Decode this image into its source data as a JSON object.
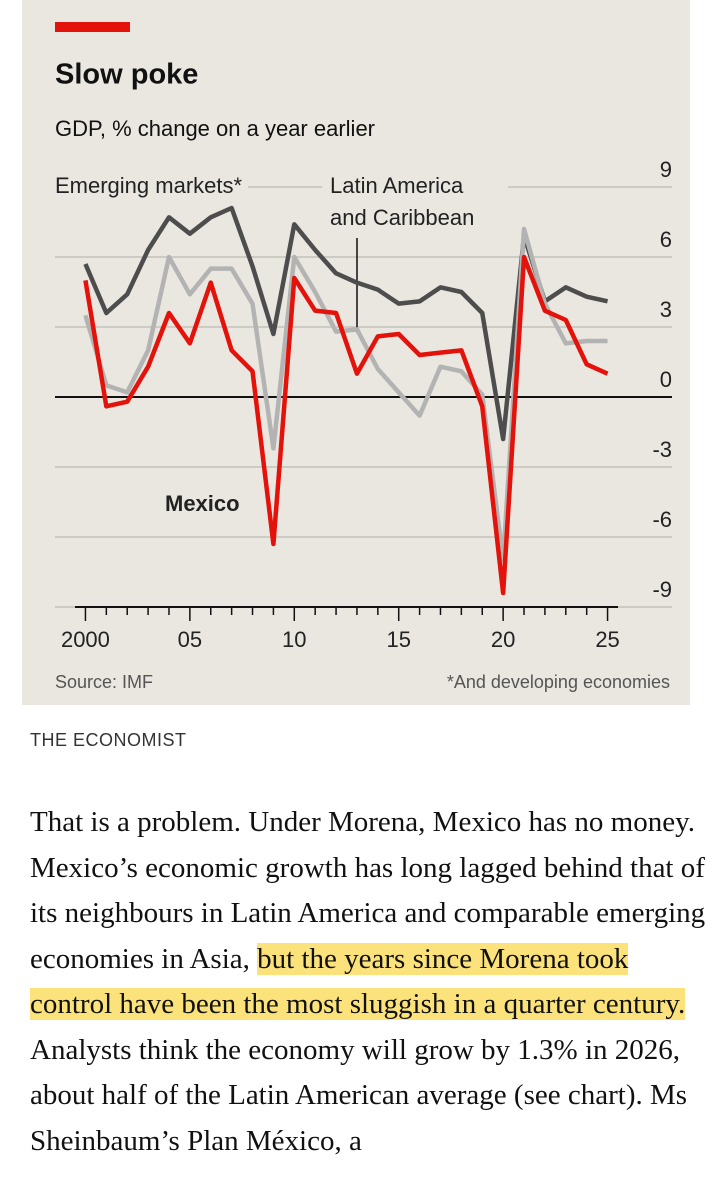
{
  "chart_data": {
    "type": "line",
    "title": "Slow poke",
    "subtitle": "GDP, % change on a year earlier",
    "x": [
      2000,
      2001,
      2002,
      2003,
      2004,
      2005,
      2006,
      2007,
      2008,
      2009,
      2010,
      2011,
      2012,
      2013,
      2014,
      2015,
      2016,
      2017,
      2018,
      2019,
      2020,
      2021,
      2022,
      2023,
      2024,
      2025
    ],
    "series": [
      {
        "name": "Emerging markets*",
        "color": "#4d4d4d",
        "values": [
          5.7,
          3.6,
          4.4,
          6.3,
          7.7,
          7.0,
          7.7,
          8.1,
          5.6,
          2.7,
          7.4,
          6.3,
          5.3,
          4.9,
          4.6,
          4.0,
          4.1,
          4.7,
          4.5,
          3.6,
          -1.8,
          6.9,
          4.1,
          4.7,
          4.3,
          4.1
        ]
      },
      {
        "name": "Latin America and Caribbean",
        "color": "#b3b3b3",
        "values": [
          3.5,
          0.5,
          0.2,
          2.0,
          6.0,
          4.4,
          5.5,
          5.5,
          4.0,
          -2.2,
          6.0,
          4.5,
          2.8,
          2.9,
          1.2,
          0.2,
          -0.8,
          1.3,
          1.1,
          0.1,
          -7.0,
          7.2,
          4.0,
          2.3,
          2.4,
          2.4
        ]
      },
      {
        "name": "Mexico",
        "color": "#e3120b",
        "values": [
          5.0,
          -0.4,
          -0.2,
          1.3,
          3.6,
          2.3,
          4.9,
          2.0,
          1.1,
          -6.3,
          5.1,
          3.7,
          3.6,
          1.0,
          2.6,
          2.7,
          1.8,
          1.9,
          2.0,
          -0.4,
          -8.4,
          6.0,
          3.7,
          3.3,
          1.4,
          1.0
        ]
      }
    ],
    "xlim": [
      1999.5,
      2025.5
    ],
    "xticks": [
      {
        "value": 2000,
        "label": "2000"
      },
      {
        "value": 2005,
        "label": "05"
      },
      {
        "value": 2010,
        "label": "10"
      },
      {
        "value": 2015,
        "label": "15"
      },
      {
        "value": 2020,
        "label": "20"
      },
      {
        "value": 2025,
        "label": "25"
      }
    ],
    "xminorticks": [
      2001,
      2002,
      2003,
      2004,
      2006,
      2007,
      2008,
      2009,
      2011,
      2012,
      2013,
      2014,
      2016,
      2017,
      2018,
      2019,
      2021,
      2022,
      2023,
      2024
    ],
    "ylim": [
      -9,
      9
    ],
    "yticks": [
      9,
      6,
      3,
      0,
      -3,
      -6,
      -9
    ],
    "grid": true,
    "source": "Source: IMF",
    "footnote": "*And developing economies"
  },
  "credit": "THE ECONOMIST",
  "article": {
    "before": "That is a problem. Under Morena, Mexico has no money. Mexico’s economic growth has long lagged behind that of its neighbours in Latin America and comparable emerging economies in Asia, ",
    "highlight": "but the years since Morena took control have been the most sluggish in a quarter century.",
    "after": " Analysts think the economy will grow by 1.3% in 2026, about half of the Latin American average (see chart). Ms Sheinbaum’s Plan México, a"
  }
}
